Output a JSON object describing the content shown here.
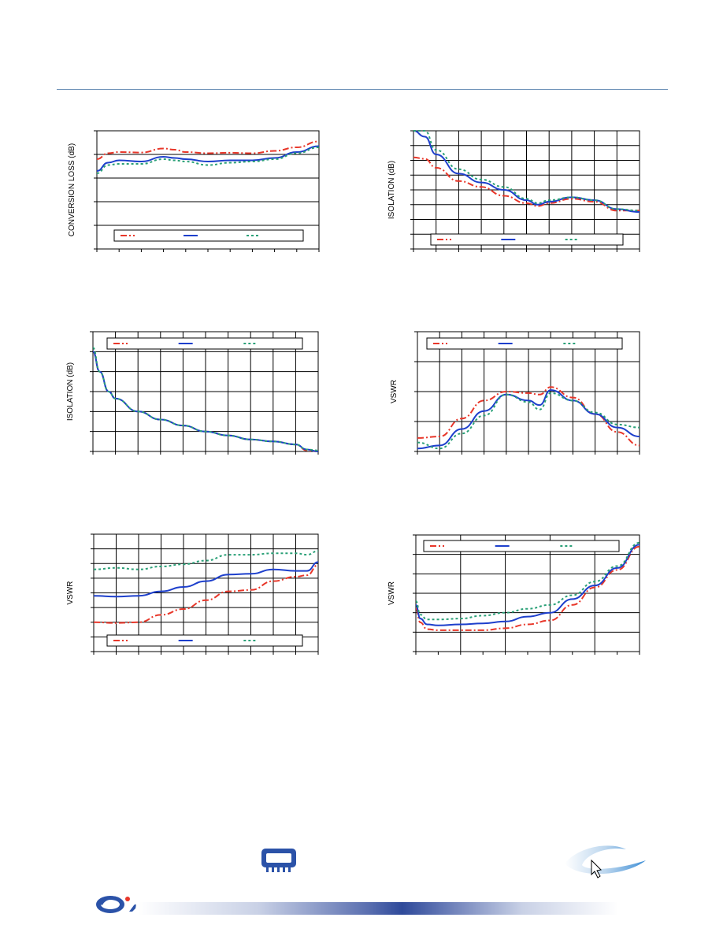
{
  "colors": {
    "series1": "#e8372a",
    "series2": "#1d3fcc",
    "series3": "#2aa077",
    "grid": "#000000",
    "header_rule": "#6f93b8"
  },
  "icons": {
    "chip": "chip-icon",
    "pointer": "mouse-pointer-icon",
    "logo": "brand-logo-icon"
  },
  "chart_data": [
    {
      "type": "line",
      "ylabel": "CONVERSION LOSS (dB)",
      "xlim": [
        0,
        10
      ],
      "ylim": [
        0,
        5
      ],
      "grid": "horizontal",
      "legend": "bottom",
      "series": [
        {
          "style": "dash-dot",
          "x": [
            0,
            0.5,
            1,
            2,
            3,
            3.5,
            4,
            5,
            6,
            7,
            8,
            9,
            10
          ],
          "values": [
            3.8,
            4.05,
            4.1,
            4.08,
            4.25,
            4.2,
            4.1,
            4.05,
            4.07,
            4.05,
            4.15,
            4.3,
            4.55
          ]
        },
        {
          "style": "solid",
          "x": [
            0,
            0.5,
            1,
            2,
            3,
            3.5,
            4,
            5,
            6,
            7,
            8,
            9,
            10
          ],
          "values": [
            3.3,
            3.65,
            3.75,
            3.7,
            3.9,
            3.85,
            3.8,
            3.7,
            3.75,
            3.75,
            3.85,
            4.1,
            4.35
          ]
        },
        {
          "style": "dotted",
          "x": [
            0,
            0.5,
            1,
            2,
            3,
            3.5,
            4,
            5,
            6,
            7,
            8,
            9,
            10
          ],
          "values": [
            3.2,
            3.55,
            3.6,
            3.6,
            3.8,
            3.75,
            3.7,
            3.55,
            3.65,
            3.7,
            3.8,
            4.05,
            4.3
          ]
        }
      ]
    },
    {
      "type": "line",
      "ylabel": "ISOLATION (dB)",
      "xlim": [
        0,
        10
      ],
      "ylim": [
        0,
        8
      ],
      "grid": "both",
      "legend": "bottom",
      "series": [
        {
          "style": "dash-dot",
          "x": [
            0,
            0.5,
            1,
            2,
            3,
            4,
            5,
            5.5,
            6,
            7,
            8,
            9,
            10
          ],
          "values": [
            6.2,
            6.1,
            5.5,
            4.6,
            4.2,
            3.6,
            3.1,
            2.9,
            3.1,
            3.4,
            3.2,
            2.6,
            2.6
          ]
        },
        {
          "style": "solid",
          "x": [
            0,
            0.5,
            1,
            2,
            3,
            4,
            5,
            5.5,
            6,
            7,
            8,
            9,
            10
          ],
          "values": [
            8.1,
            7.6,
            6.4,
            5.1,
            4.5,
            4.0,
            3.3,
            3.0,
            3.2,
            3.5,
            3.3,
            2.7,
            2.5
          ]
        },
        {
          "style": "dotted",
          "x": [
            0,
            0.5,
            1,
            2,
            3,
            4,
            5,
            5.5,
            6,
            7,
            8,
            9,
            10
          ],
          "values": [
            9.0,
            8.0,
            6.7,
            5.4,
            4.7,
            4.2,
            3.4,
            3.1,
            3.3,
            3.5,
            3.3,
            2.7,
            2.6
          ]
        }
      ]
    },
    {
      "type": "line",
      "ylabel": "ISOLATION (dB)",
      "xlim": [
        0,
        10
      ],
      "ylim": [
        0,
        6
      ],
      "grid": "both",
      "legend": "top",
      "series": [
        {
          "style": "dash-dot",
          "x": [
            0,
            0.3,
            0.7,
            1,
            2,
            3,
            4,
            5,
            6,
            7,
            8,
            9,
            9.5,
            10
          ],
          "values": [
            5.0,
            4.0,
            3.0,
            2.65,
            2.0,
            1.6,
            1.3,
            1.0,
            0.8,
            0.6,
            0.5,
            0.35,
            0.05,
            0.0
          ]
        },
        {
          "style": "solid",
          "x": [
            0,
            0.3,
            0.7,
            1,
            2,
            3,
            4,
            5,
            6,
            7,
            8,
            9,
            9.5,
            10
          ],
          "values": [
            5.0,
            4.0,
            3.0,
            2.65,
            2.0,
            1.6,
            1.3,
            1.0,
            0.8,
            0.6,
            0.5,
            0.35,
            0.1,
            0.0
          ]
        },
        {
          "style": "dotted",
          "x": [
            0,
            0.3,
            0.7,
            1,
            2,
            3,
            4,
            5,
            6,
            7,
            8,
            9,
            9.5,
            10
          ],
          "values": [
            5.2,
            4.0,
            3.0,
            2.65,
            2.0,
            1.6,
            1.3,
            1.0,
            0.8,
            0.6,
            0.5,
            0.35,
            0.1,
            0.05
          ]
        }
      ]
    },
    {
      "type": "line",
      "ylabel": "VSWR",
      "xlim": [
        0,
        10
      ],
      "ylim": [
        0,
        4
      ],
      "grid": "both",
      "legend": "top",
      "series": [
        {
          "style": "dash-dot",
          "x": [
            0,
            1,
            2,
            3,
            4,
            5,
            5.5,
            6,
            7,
            8,
            9,
            10
          ],
          "values": [
            0.45,
            0.5,
            1.1,
            1.7,
            2.0,
            1.95,
            1.9,
            2.15,
            1.8,
            1.25,
            0.65,
            0.2
          ]
        },
        {
          "style": "solid",
          "x": [
            0,
            1,
            2,
            3,
            4,
            5,
            5.5,
            6,
            7,
            8,
            9,
            10
          ],
          "values": [
            0.1,
            0.2,
            0.75,
            1.35,
            1.9,
            1.7,
            1.55,
            2.05,
            1.7,
            1.25,
            0.8,
            0.5
          ]
        },
        {
          "style": "dotted",
          "x": [
            0,
            1,
            2,
            3,
            4,
            5,
            5.5,
            6,
            7,
            8,
            9,
            10
          ],
          "values": [
            0.3,
            0.1,
            0.6,
            1.2,
            1.9,
            1.65,
            1.4,
            1.95,
            1.7,
            1.3,
            0.9,
            0.8
          ]
        }
      ]
    },
    {
      "type": "line",
      "ylabel": "VSWR",
      "xlim": [
        0,
        10
      ],
      "ylim": [
        0,
        8
      ],
      "grid": "both",
      "legend": "bottom",
      "series": [
        {
          "style": "dash-dot",
          "x": [
            0,
            1,
            2,
            3,
            4,
            5,
            6,
            7,
            8,
            9,
            9.5,
            10
          ],
          "values": [
            2.0,
            1.95,
            2.0,
            2.5,
            2.9,
            3.5,
            4.1,
            4.2,
            4.8,
            5.1,
            5.2,
            5.9
          ]
        },
        {
          "style": "solid",
          "x": [
            0,
            1,
            2,
            3,
            4,
            5,
            6,
            7,
            8,
            9,
            9.5,
            10
          ],
          "values": [
            3.8,
            3.75,
            3.8,
            4.1,
            4.4,
            4.8,
            5.25,
            5.3,
            5.6,
            5.5,
            5.5,
            6.1
          ]
        },
        {
          "style": "dotted",
          "x": [
            0,
            1,
            2,
            3,
            4,
            5,
            6,
            7,
            8,
            9,
            9.5,
            10
          ],
          "values": [
            5.6,
            5.7,
            5.6,
            5.8,
            5.95,
            6.2,
            6.6,
            6.6,
            6.7,
            6.7,
            6.6,
            6.85
          ]
        }
      ]
    },
    {
      "type": "line",
      "ylabel": "VSWR",
      "xlim": [
        0,
        10
      ],
      "ylim": [
        0,
        6
      ],
      "grid": "both",
      "legend": "top",
      "series": [
        {
          "style": "dash-dot",
          "x": [
            0,
            0.2,
            0.5,
            1,
            2,
            3,
            4,
            5,
            6,
            7,
            8,
            9,
            10
          ],
          "values": [
            2.2,
            1.5,
            1.15,
            1.1,
            1.1,
            1.1,
            1.2,
            1.4,
            1.6,
            2.4,
            3.3,
            4.2,
            5.4
          ]
        },
        {
          "style": "solid",
          "x": [
            0,
            0.2,
            0.5,
            1,
            2,
            3,
            4,
            5,
            6,
            7,
            8,
            9,
            10
          ],
          "values": [
            2.4,
            1.7,
            1.4,
            1.35,
            1.4,
            1.45,
            1.55,
            1.8,
            2.0,
            2.7,
            3.4,
            4.3,
            5.5
          ]
        },
        {
          "style": "dotted",
          "x": [
            0,
            0.2,
            0.5,
            1,
            2,
            3,
            4,
            5,
            6,
            7,
            8,
            9,
            10
          ],
          "values": [
            2.6,
            1.9,
            1.65,
            1.65,
            1.7,
            1.85,
            2.0,
            2.2,
            2.4,
            2.9,
            3.6,
            4.4,
            5.6
          ]
        }
      ]
    }
  ]
}
